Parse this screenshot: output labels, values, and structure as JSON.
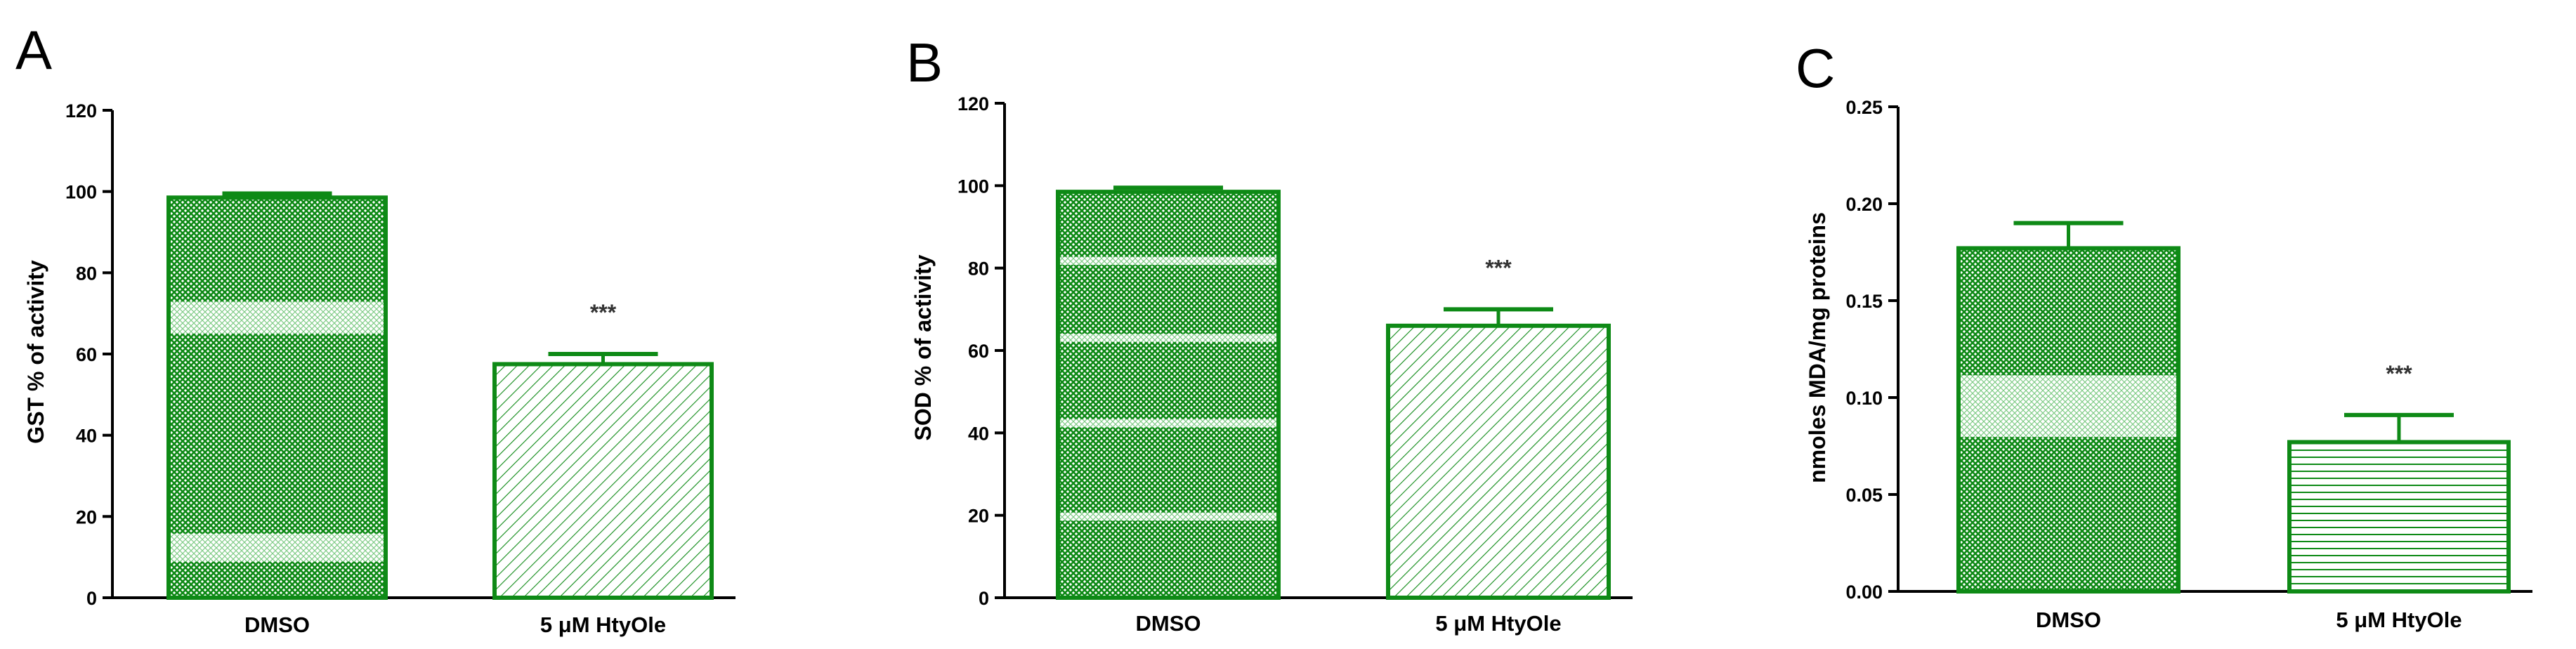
{
  "chart_data": [
    {
      "panel": "A",
      "type": "bar",
      "categories": [
        "DMSO",
        "5 μM HtyOle"
      ],
      "values": [
        98.5,
        57.5
      ],
      "errors": [
        1.0,
        2.5
      ],
      "significance": [
        "",
        "***"
      ],
      "ylabel": "GST % of activity",
      "ylim": [
        0,
        120
      ],
      "yticks": [
        0,
        20,
        40,
        60,
        80,
        100,
        120
      ],
      "ytick_labels": [
        "0",
        "20",
        "40",
        "60",
        "80",
        "100",
        "120"
      ],
      "bar_patterns": [
        "crosshatch",
        "diagonal"
      ]
    },
    {
      "panel": "B",
      "type": "bar",
      "categories": [
        "DMSO",
        "5 μM HtyOle"
      ],
      "values": [
        98.5,
        66
      ],
      "errors": [
        1.0,
        4.0
      ],
      "significance": [
        "",
        "***"
      ],
      "ylabel": "SOD % of activity",
      "ylim": [
        0,
        120
      ],
      "yticks": [
        0,
        20,
        40,
        60,
        80,
        100,
        120
      ],
      "ytick_labels": [
        "0",
        "20",
        "40",
        "60",
        "80",
        "100",
        "120"
      ],
      "bar_patterns": [
        "crosshatch",
        "diagonal"
      ]
    },
    {
      "panel": "C",
      "type": "bar",
      "categories": [
        "DMSO",
        "5 μM HtyOle"
      ],
      "values": [
        0.177,
        0.077
      ],
      "errors": [
        0.013,
        0.014
      ],
      "significance": [
        "",
        "***"
      ],
      "ylabel": "nmoles MDA/mg proteins",
      "ylim": [
        0,
        0.25
      ],
      "yticks": [
        0,
        0.05,
        0.1,
        0.15,
        0.2,
        0.25
      ],
      "ytick_labels": [
        "0.00",
        "0.05",
        "0.10",
        "0.15",
        "0.20",
        "0.25"
      ],
      "bar_patterns": [
        "crosshatch",
        "horizontal"
      ]
    }
  ],
  "colors": {
    "bar": "#0e8a16",
    "axis": "#000000",
    "hatch_light": "#eafbe9"
  }
}
